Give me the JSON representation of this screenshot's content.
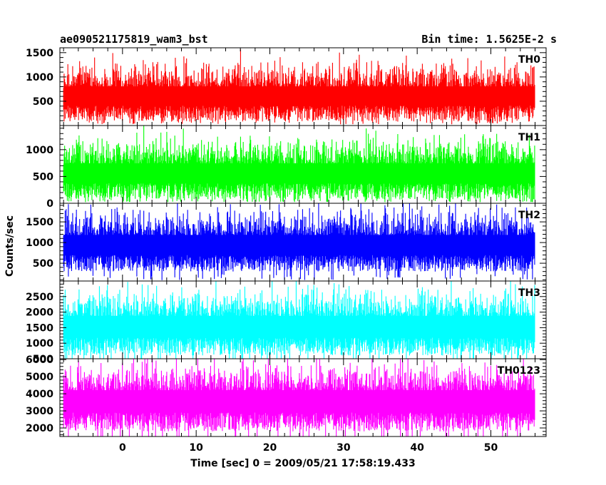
{
  "header": {
    "title_left": "ae090521175819_wam3_bst",
    "title_right": "Bin time: 1.5625E-2 s"
  },
  "chart_data": {
    "type": "line",
    "title": "ae090521175819_wam3_bst",
    "subtitle": "Bin time: 1.5625E-2 s",
    "xlabel": "Time [sec] 0 = 2009/05/21 17:58:19.433",
    "ylabel": "Counts/sec",
    "xlim": [
      -8.5,
      57.5
    ],
    "data_xrange": [
      -8.0,
      56.0
    ],
    "x_ticks": [
      0,
      10,
      20,
      30,
      40,
      50
    ],
    "bin_time": 0.015625,
    "grid": false,
    "panels": [
      {
        "name": "TH0",
        "color": "#ff0000",
        "ylim": [
          0,
          1600
        ],
        "y_ticks": [
          500,
          1000,
          1500
        ],
        "y_minor_step": 100,
        "mean": 680,
        "noise_sd": 230,
        "floor": 80
      },
      {
        "name": "TH1",
        "color": "#00ff00",
        "ylim": [
          0,
          1450
        ],
        "y_ticks": [
          0,
          500,
          1000
        ],
        "y_minor_step": 100,
        "mean": 620,
        "noise_sd": 230,
        "floor": 70
      },
      {
        "name": "TH2",
        "color": "#0000ff",
        "ylim": [
          70,
          1950
        ],
        "y_ticks": [
          500,
          1000,
          1500
        ],
        "y_minor_step": 100,
        "mean": 1020,
        "noise_sd": 300,
        "floor": 300
      },
      {
        "name": "TH3",
        "color": "#00ffff",
        "ylim": [
          500,
          3000
        ],
        "y_ticks": [
          500,
          1000,
          1500,
          2000,
          2500
        ],
        "y_minor_step": 100,
        "mean": 1650,
        "noise_sd": 420,
        "floor": 600
      },
      {
        "name": "TH0123",
        "color": "#ff00ff",
        "ylim": [
          1500,
          6050
        ],
        "y_ticks": [
          2000,
          3000,
          4000,
          5000,
          6000
        ],
        "y_minor_step": 200,
        "mean": 3800,
        "noise_sd": 750,
        "floor": 1800
      }
    ]
  }
}
